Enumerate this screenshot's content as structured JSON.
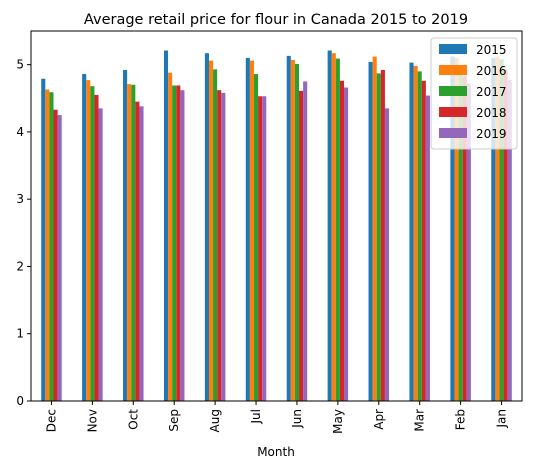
{
  "chart_data": {
    "type": "bar",
    "title": "Average retail price for flour in Canada 2015 to 2019",
    "xlabel": "Month",
    "ylabel": "",
    "ylim": [
      0,
      5.5
    ],
    "yticks": [
      "0",
      "1",
      "2",
      "3",
      "4",
      "5"
    ],
    "grid": false,
    "legend_position": "top-right",
    "categories": [
      "Dec",
      "Nov",
      "Oct",
      "Sep",
      "Aug",
      "Jul",
      "Jun",
      "May",
      "Apr",
      "Mar",
      "Feb",
      "Jan"
    ],
    "series": [
      {
        "name": "2015",
        "color": "#1f77b4",
        "values": [
          4.79,
          4.86,
          4.92,
          5.21,
          5.17,
          5.1,
          5.13,
          5.21,
          5.04,
          5.03,
          5.12,
          5.1
        ]
      },
      {
        "name": "2016",
        "color": "#ff7f0e",
        "values": [
          4.63,
          4.77,
          4.71,
          4.88,
          5.06,
          5.06,
          5.07,
          5.17,
          5.12,
          4.98,
          5.1,
          5.12
        ]
      },
      {
        "name": "2017",
        "color": "#2ca02c",
        "values": [
          4.59,
          4.68,
          4.7,
          4.69,
          4.93,
          4.86,
          5.01,
          5.09,
          4.87,
          4.9,
          4.93,
          5.08
        ]
      },
      {
        "name": "2018",
        "color": "#d62728",
        "values": [
          4.33,
          4.55,
          4.45,
          4.69,
          4.62,
          4.53,
          4.61,
          4.76,
          4.92,
          4.76,
          4.83,
          4.93
        ]
      },
      {
        "name": "2019",
        "color": "#9467bd",
        "values": [
          4.25,
          4.35,
          4.38,
          4.62,
          4.58,
          4.53,
          4.75,
          4.66,
          4.35,
          4.54,
          4.72,
          4.77
        ]
      }
    ]
  }
}
